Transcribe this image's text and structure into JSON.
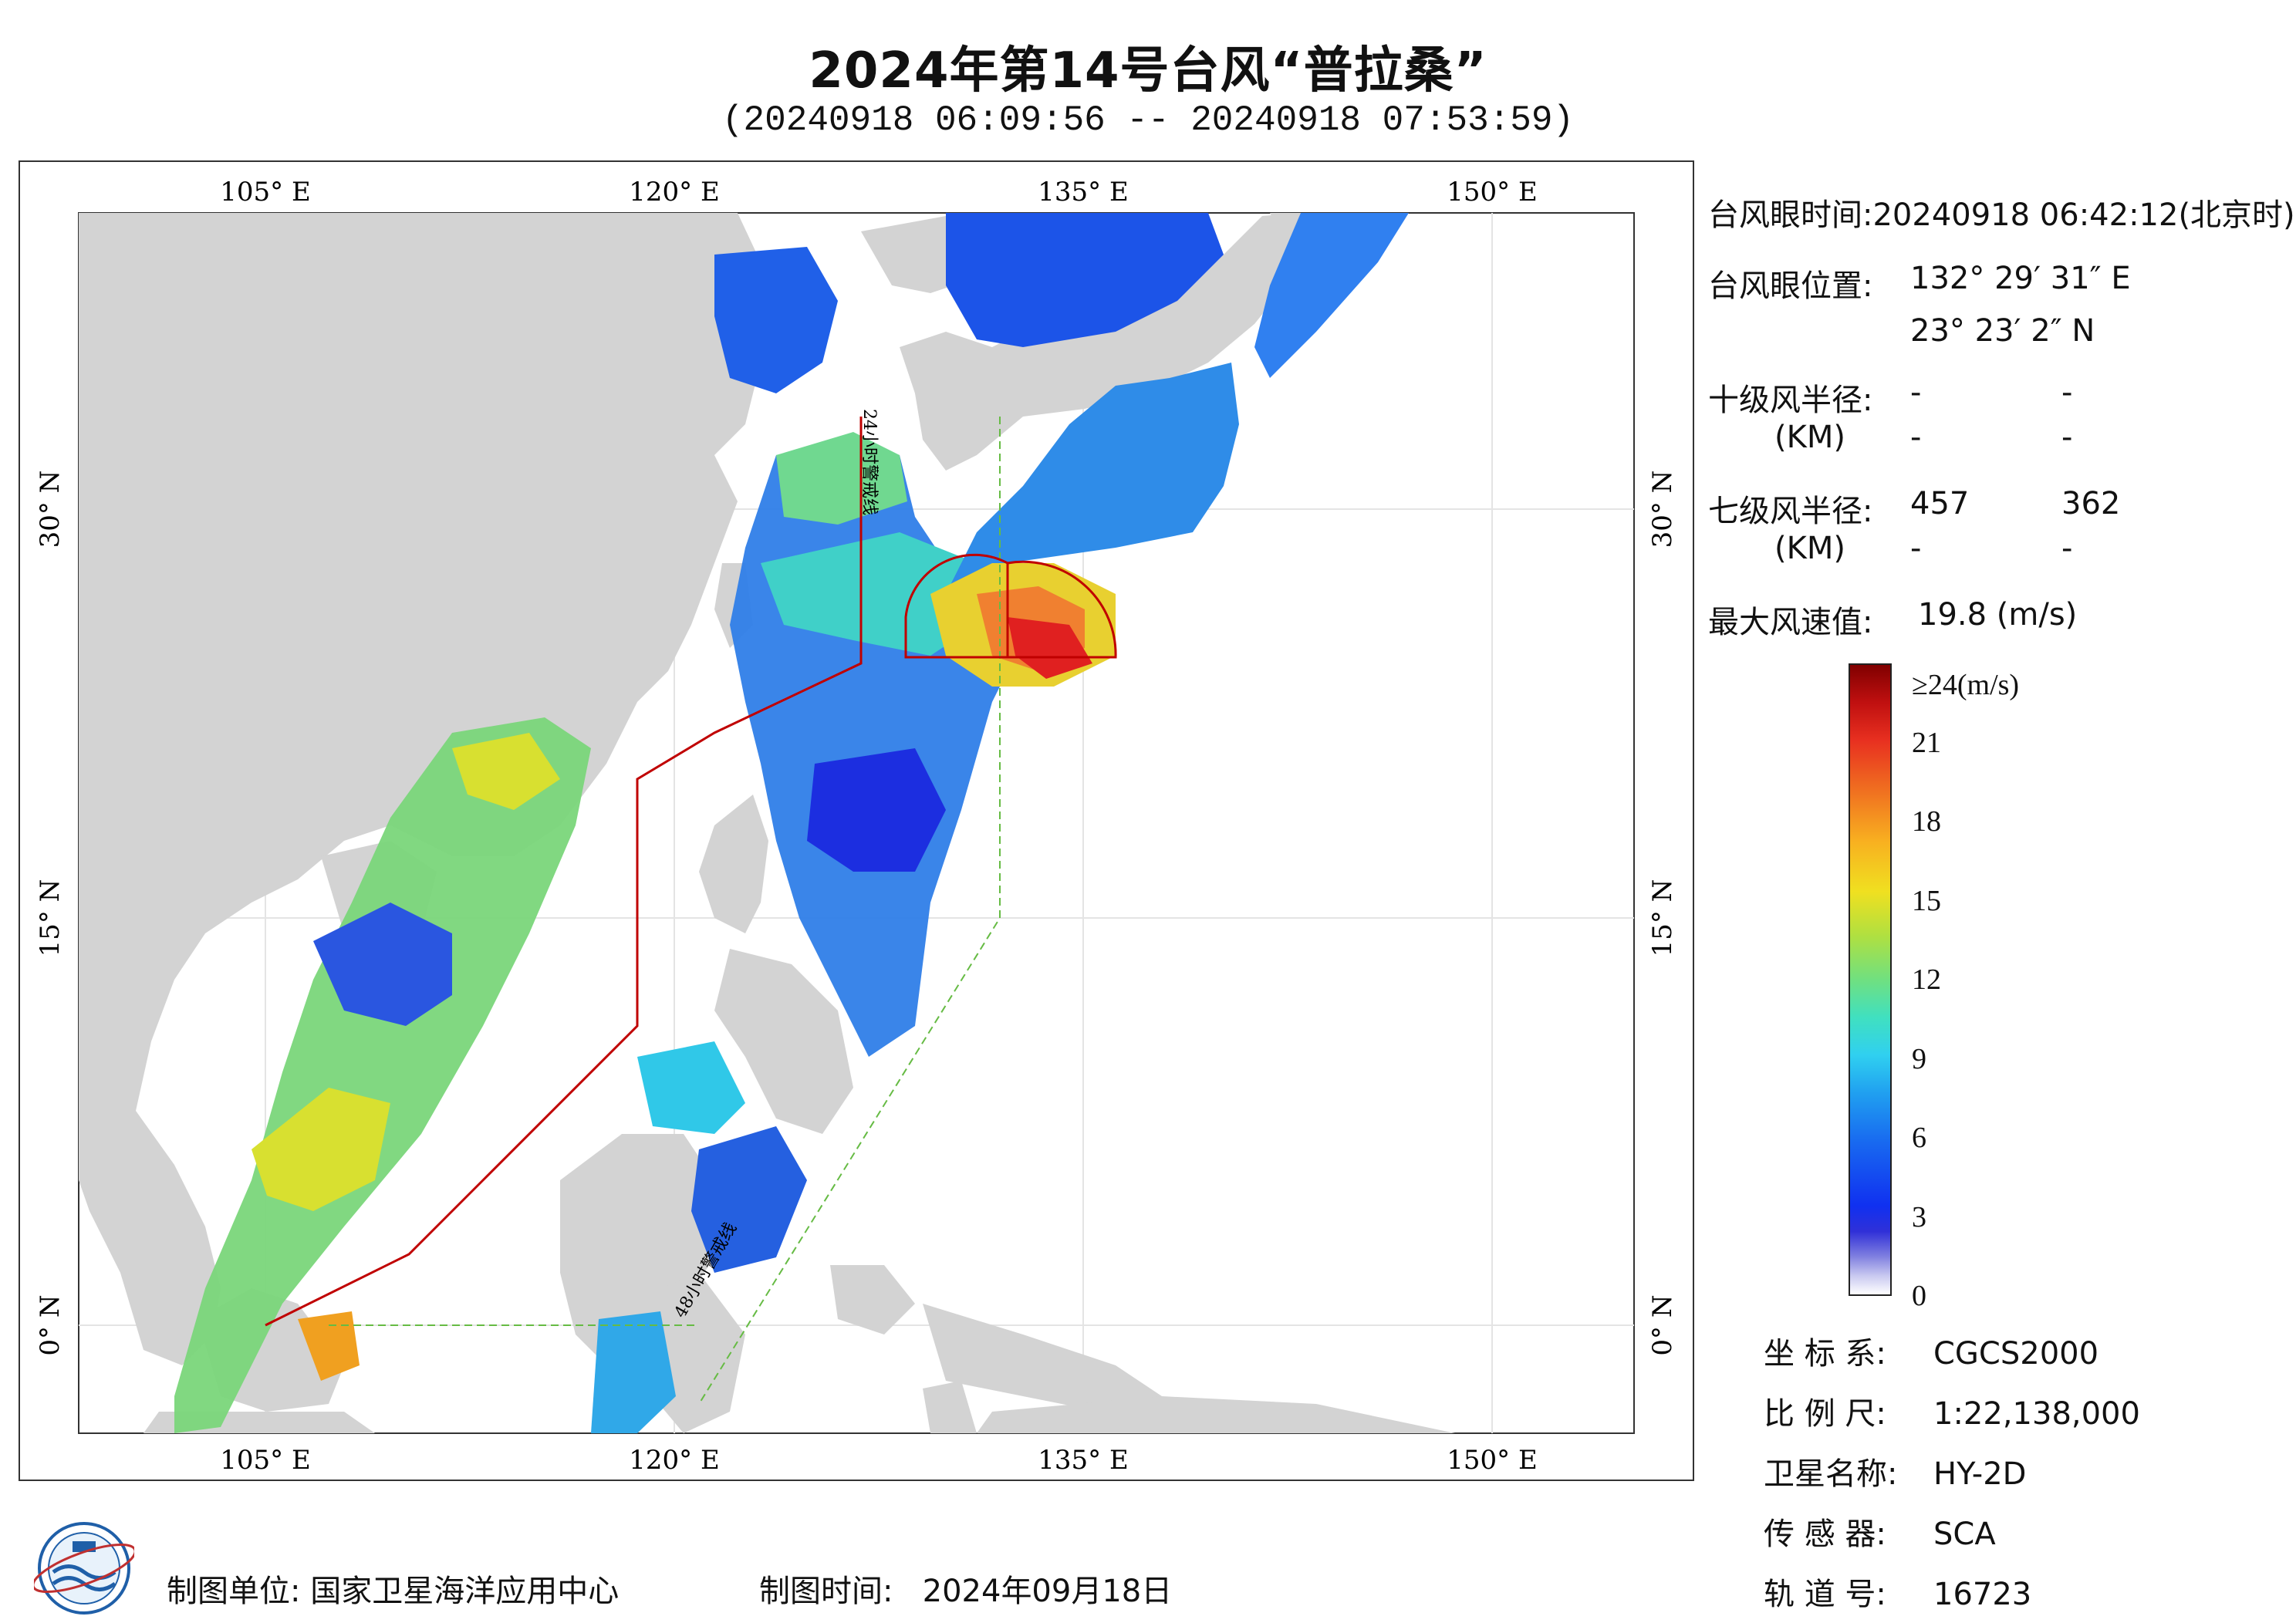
{
  "title": "2024年第14号台风“普拉桑”",
  "subtitle": "(20240918 06:09:56 -- 20240918 07:53:59)",
  "map": {
    "lon_labels": [
      "105° E",
      "120° E",
      "135° E",
      "150° E"
    ],
    "lat_labels": [
      "30° N",
      "15° N",
      "0° N"
    ],
    "line_annotation_1": "24小时警戒线",
    "line_annotation_2": "48小时警戒线",
    "colors": {
      "land": "#d3d3d3",
      "ocean": "#ffffff",
      "warning_24h": "#c00000",
      "warning_48h": "#66bb44",
      "wind_radius": "#c00000"
    }
  },
  "info": {
    "eye_time_label": "台风眼时间:",
    "eye_time_value": "20240918 06:42:12(北京时)",
    "eye_pos_label": "台风眼位置:",
    "eye_lon": "132° 29′ 31″ E",
    "eye_lat": "23° 23′ 2″ N",
    "r10_label": "十级风半径:",
    "r10_unit": "(KM)",
    "r10_v1": "-",
    "r10_v2": "-",
    "r10_v3": "-",
    "r10_v4": "-",
    "r7_label": "七级风半径:",
    "r7_unit": "(KM)",
    "r7_v1": "457",
    "r7_v2": "362",
    "r7_v3": "-",
    "r7_v4": "-",
    "max_wind_label": "最大风速值:",
    "max_wind_value": "19.8  (m/s)"
  },
  "colorbar": {
    "top_label": "≥24(m/s)",
    "ticks": [
      "21",
      "18",
      "15",
      "12",
      "9",
      "6",
      "3",
      "0"
    ],
    "tick_values": [
      21,
      18,
      15,
      12,
      9,
      6,
      3,
      0
    ],
    "max_value": 24
  },
  "metadata": {
    "crs_label": "坐 标 系:",
    "crs_value": "CGCS2000",
    "scale_label": "比 例 尺:",
    "scale_value": "1:22,138,000",
    "sat_label": "卫星名称:",
    "sat_value": "HY-2D",
    "sensor_label": "传 感 器:",
    "sensor_value": "SCA",
    "orbit_label": "轨 道 号:",
    "orbit_value": "16723"
  },
  "footer": {
    "producer_label": "制图单位:",
    "producer_value": "国家卫星海洋应用中心",
    "date_label": "制图时间:",
    "date_value": "2024年09月18日"
  }
}
